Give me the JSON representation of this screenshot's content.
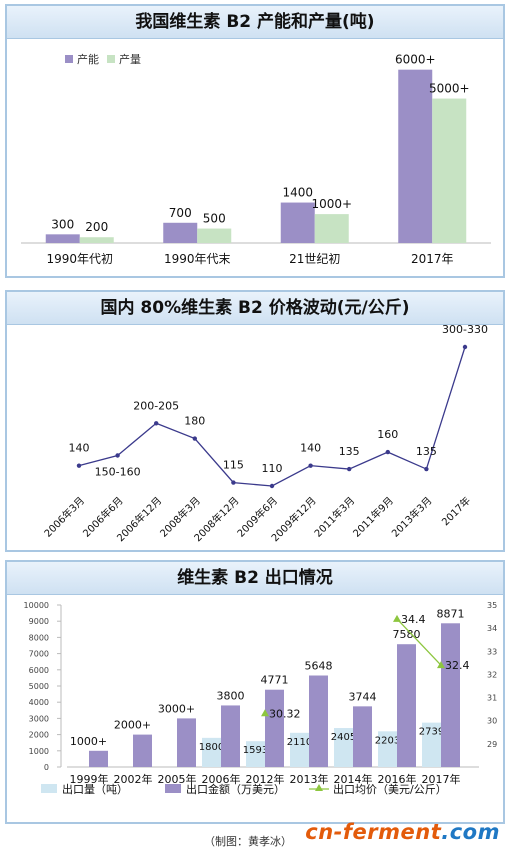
{
  "chart_data": [
    {
      "type": "bar",
      "title": "我国维生素 B2 产能和产量(吨)",
      "categories": [
        "1990年代初",
        "1990年代末",
        "21世纪初",
        "2017年"
      ],
      "series": [
        {
          "name": "产能",
          "values": [
            300,
            700,
            1400,
            6000
          ],
          "labels": [
            "300",
            "700",
            "1400",
            "6000+"
          ],
          "color": "#9b8fc6"
        },
        {
          "name": "产量",
          "values": [
            200,
            500,
            1000,
            5000
          ],
          "labels": [
            "200",
            "500",
            "1000+",
            "5000+"
          ],
          "color": "#c7e3c3"
        }
      ],
      "ylim": [
        0,
        6300
      ],
      "legend": "top-left"
    },
    {
      "type": "line",
      "title": "国内 80%维生素 B2 价格波动(元/公斤)",
      "x": [
        "2006年3月",
        "2006年6月",
        "2006年12月",
        "2008年3月",
        "2008年12月",
        "2009年6月",
        "2009年12月",
        "2011年3月",
        "2011年9月",
        "2013年3月",
        "2017年"
      ],
      "values": [
        140,
        155,
        202.5,
        180,
        115,
        110,
        140,
        135,
        160,
        135,
        315
      ],
      "labels": [
        "140",
        "150-160",
        "200-205",
        "180",
        "115",
        "110",
        "140",
        "135",
        "160",
        "135",
        "300-330"
      ],
      "ylim": [
        60,
        340
      ],
      "color": "#3b3a8c"
    },
    {
      "type": "bar",
      "title": "维生素 B2 出口情况",
      "categories": [
        "1999年",
        "2002年",
        "2005年",
        "2006年",
        "2012年",
        "2013年",
        "2014年",
        "2016年",
        "2017年"
      ],
      "series": [
        {
          "name": "出口量（吨）",
          "values": [
            0,
            0,
            0,
            1800,
            1593,
            2110,
            2405,
            2203,
            2739
          ],
          "labels": [
            "",
            "",
            "",
            "1800",
            "1593",
            "2110",
            "2405",
            "2203",
            "2739"
          ],
          "color": "#cfe6f1"
        },
        {
          "name": "出口金额（万美元）",
          "values": [
            1000,
            2000,
            3000,
            3800,
            4771,
            5648,
            3744,
            7580,
            8871
          ],
          "labels": [
            "1000+",
            "2000+",
            "3000+",
            "3800",
            "4771",
            "5648",
            "3744",
            "7580",
            "8871"
          ],
          "color": "#9b8fc6"
        },
        {
          "name": "出口均价（美元/公斤）",
          "values": [
            null,
            null,
            null,
            null,
            30.32,
            null,
            null,
            34.4,
            32.4
          ],
          "labels": [
            "",
            "",
            "",
            "",
            "30.32",
            "",
            "",
            "34.4",
            "32.4"
          ],
          "color": "#8dc63f"
        }
      ],
      "ylim": [
        0,
        10000
      ],
      "y2lim": [
        28,
        35
      ],
      "yticks": [
        "0",
        "1000",
        "2000",
        "3000",
        "4000",
        "5000",
        "6000",
        "7000",
        "8000",
        "9000",
        "10000"
      ],
      "y2ticks": [
        "29",
        "30",
        "31",
        "32",
        "33",
        "34",
        "35"
      ],
      "legend": "bottom"
    }
  ],
  "credit": "（制图：黄孝冰）",
  "watermark": {
    "part1": "cn-ferment",
    "part2": ".com"
  }
}
